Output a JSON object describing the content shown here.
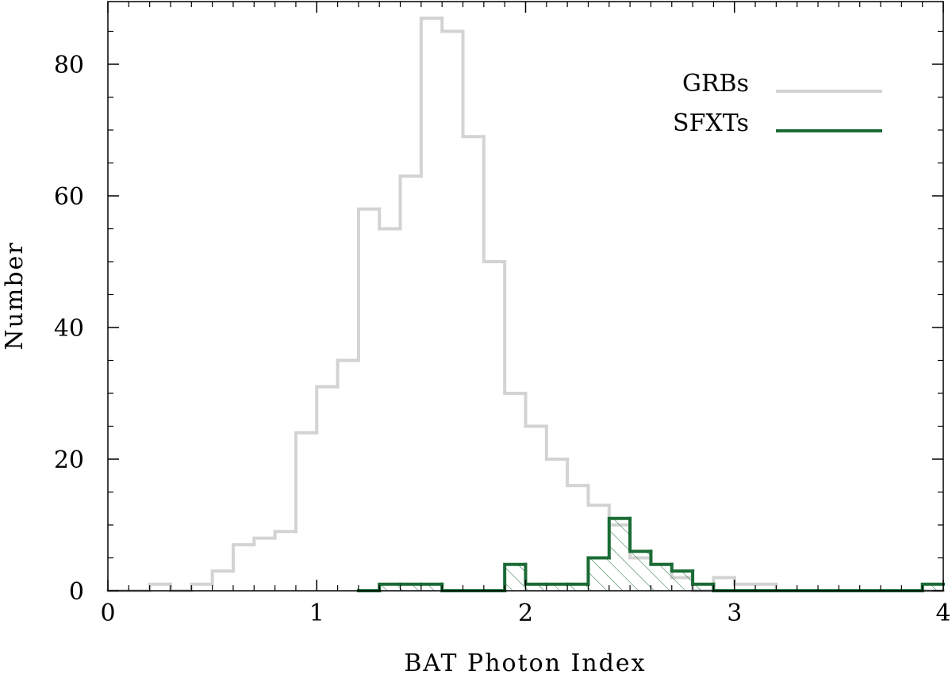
{
  "chart_data": {
    "type": "histogram",
    "xlabel": "BAT Photon Index",
    "ylabel": "Number",
    "xlim": [
      0,
      4
    ],
    "ylim": [
      0,
      90
    ],
    "x_ticks": [
      0,
      1,
      2,
      3,
      4
    ],
    "x_tick_labels": [
      "0",
      "1",
      "2",
      "3",
      "4"
    ],
    "y_ticks": [
      0,
      20,
      40,
      60,
      80
    ],
    "y_tick_labels": [
      "0",
      "20",
      "40",
      "60",
      "80"
    ],
    "bin_width": 0.1,
    "bin_starts": [
      0,
      0.1,
      0.2,
      0.3,
      0.4,
      0.5,
      0.6,
      0.7,
      0.8,
      0.9,
      1.0,
      1.1,
      1.2,
      1.3,
      1.4,
      1.5,
      1.6,
      1.7,
      1.8,
      1.9,
      2.0,
      2.1,
      2.2,
      2.3,
      2.4,
      2.5,
      2.6,
      2.7,
      2.8,
      2.9,
      3.0,
      3.1,
      3.2,
      3.3,
      3.4,
      3.5,
      3.6,
      3.7,
      3.8,
      3.9
    ],
    "grid": false,
    "legend_position": "top-right",
    "series": [
      {
        "name": "GRBs",
        "color": "#d3d3d3",
        "hatched": false,
        "values": [
          0,
          0,
          1,
          0,
          1,
          3,
          7,
          8,
          9,
          24,
          31,
          35,
          58,
          55,
          63,
          87,
          85,
          69,
          50,
          30,
          25,
          20,
          16,
          13,
          10,
          5,
          4,
          2,
          0,
          2,
          1,
          1,
          0,
          0,
          0,
          0,
          0,
          0,
          0,
          0
        ]
      },
      {
        "name": "SFXTs",
        "color": "#1a6b35",
        "hatched": true,
        "values": [
          null,
          null,
          null,
          null,
          null,
          null,
          null,
          null,
          null,
          null,
          null,
          null,
          0,
          1,
          1,
          1,
          0,
          0,
          0,
          4,
          1,
          1,
          1,
          5,
          11,
          6,
          4,
          3,
          1,
          0,
          0,
          0,
          0,
          0,
          0,
          0,
          0,
          0,
          0,
          1
        ]
      }
    ]
  }
}
